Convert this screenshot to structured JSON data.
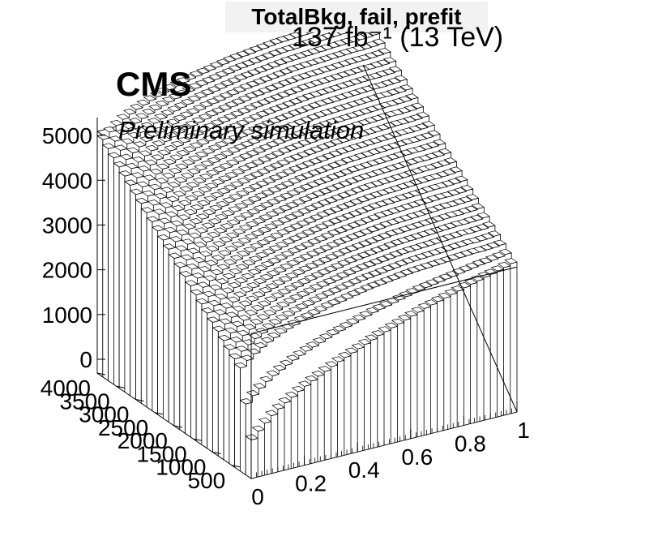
{
  "title": "TotalBkg, fail, prefit",
  "lumi_label": "137 fb⁻¹ (13 TeV)",
  "cms_label": "CMS",
  "extra_label": "Preliminary simulation",
  "colors": {
    "fill": "#ffffff",
    "line": "#000000",
    "title_box": "#f2f2f2"
  },
  "chart_data": {
    "type": "lego",
    "title": "TotalBkg, fail, prefit",
    "x_axis": {
      "range": [
        0,
        1
      ],
      "ticks": [
        "0",
        "0.2",
        "0.4",
        "0.6",
        "0.8",
        "1"
      ]
    },
    "y_axis": {
      "range": [
        0,
        4000
      ],
      "ticks": [
        "500",
        "1000",
        "1500",
        "2000",
        "2500",
        "3000",
        "3500",
        "4000"
      ]
    },
    "z_axis": {
      "range": [
        0,
        5400
      ],
      "ticks": [
        "0",
        "1000",
        "2000",
        "3000",
        "4000",
        "5000"
      ]
    },
    "n_x_bins": 40,
    "y_slices": 28,
    "front_row_x_start": 0.0,
    "front_row_values": [
      860,
      1020,
      1160,
      1290,
      1400,
      1500,
      1590,
      1680,
      1760,
      1840,
      1910,
      1980,
      2050,
      2120,
      2180,
      2240,
      2300,
      2360,
      2420,
      2480,
      2530,
      2580,
      2630,
      2680,
      2730,
      2780,
      2830,
      2870,
      2910,
      2950,
      2990,
      3030,
      3070,
      3110,
      3150,
      3190,
      3220,
      3260,
      3300,
      3350
    ],
    "left_col_values": [
      2060,
      2180,
      2300,
      2420,
      2540,
      2660,
      2780,
      2900,
      3020,
      3140,
      3260,
      3380,
      3500,
      3620,
      3740,
      3860,
      3980,
      4100,
      4220,
      4340,
      4460,
      4580,
      4700,
      4820,
      4940,
      5060,
      5180,
      5300
    ],
    "grid": true
  }
}
